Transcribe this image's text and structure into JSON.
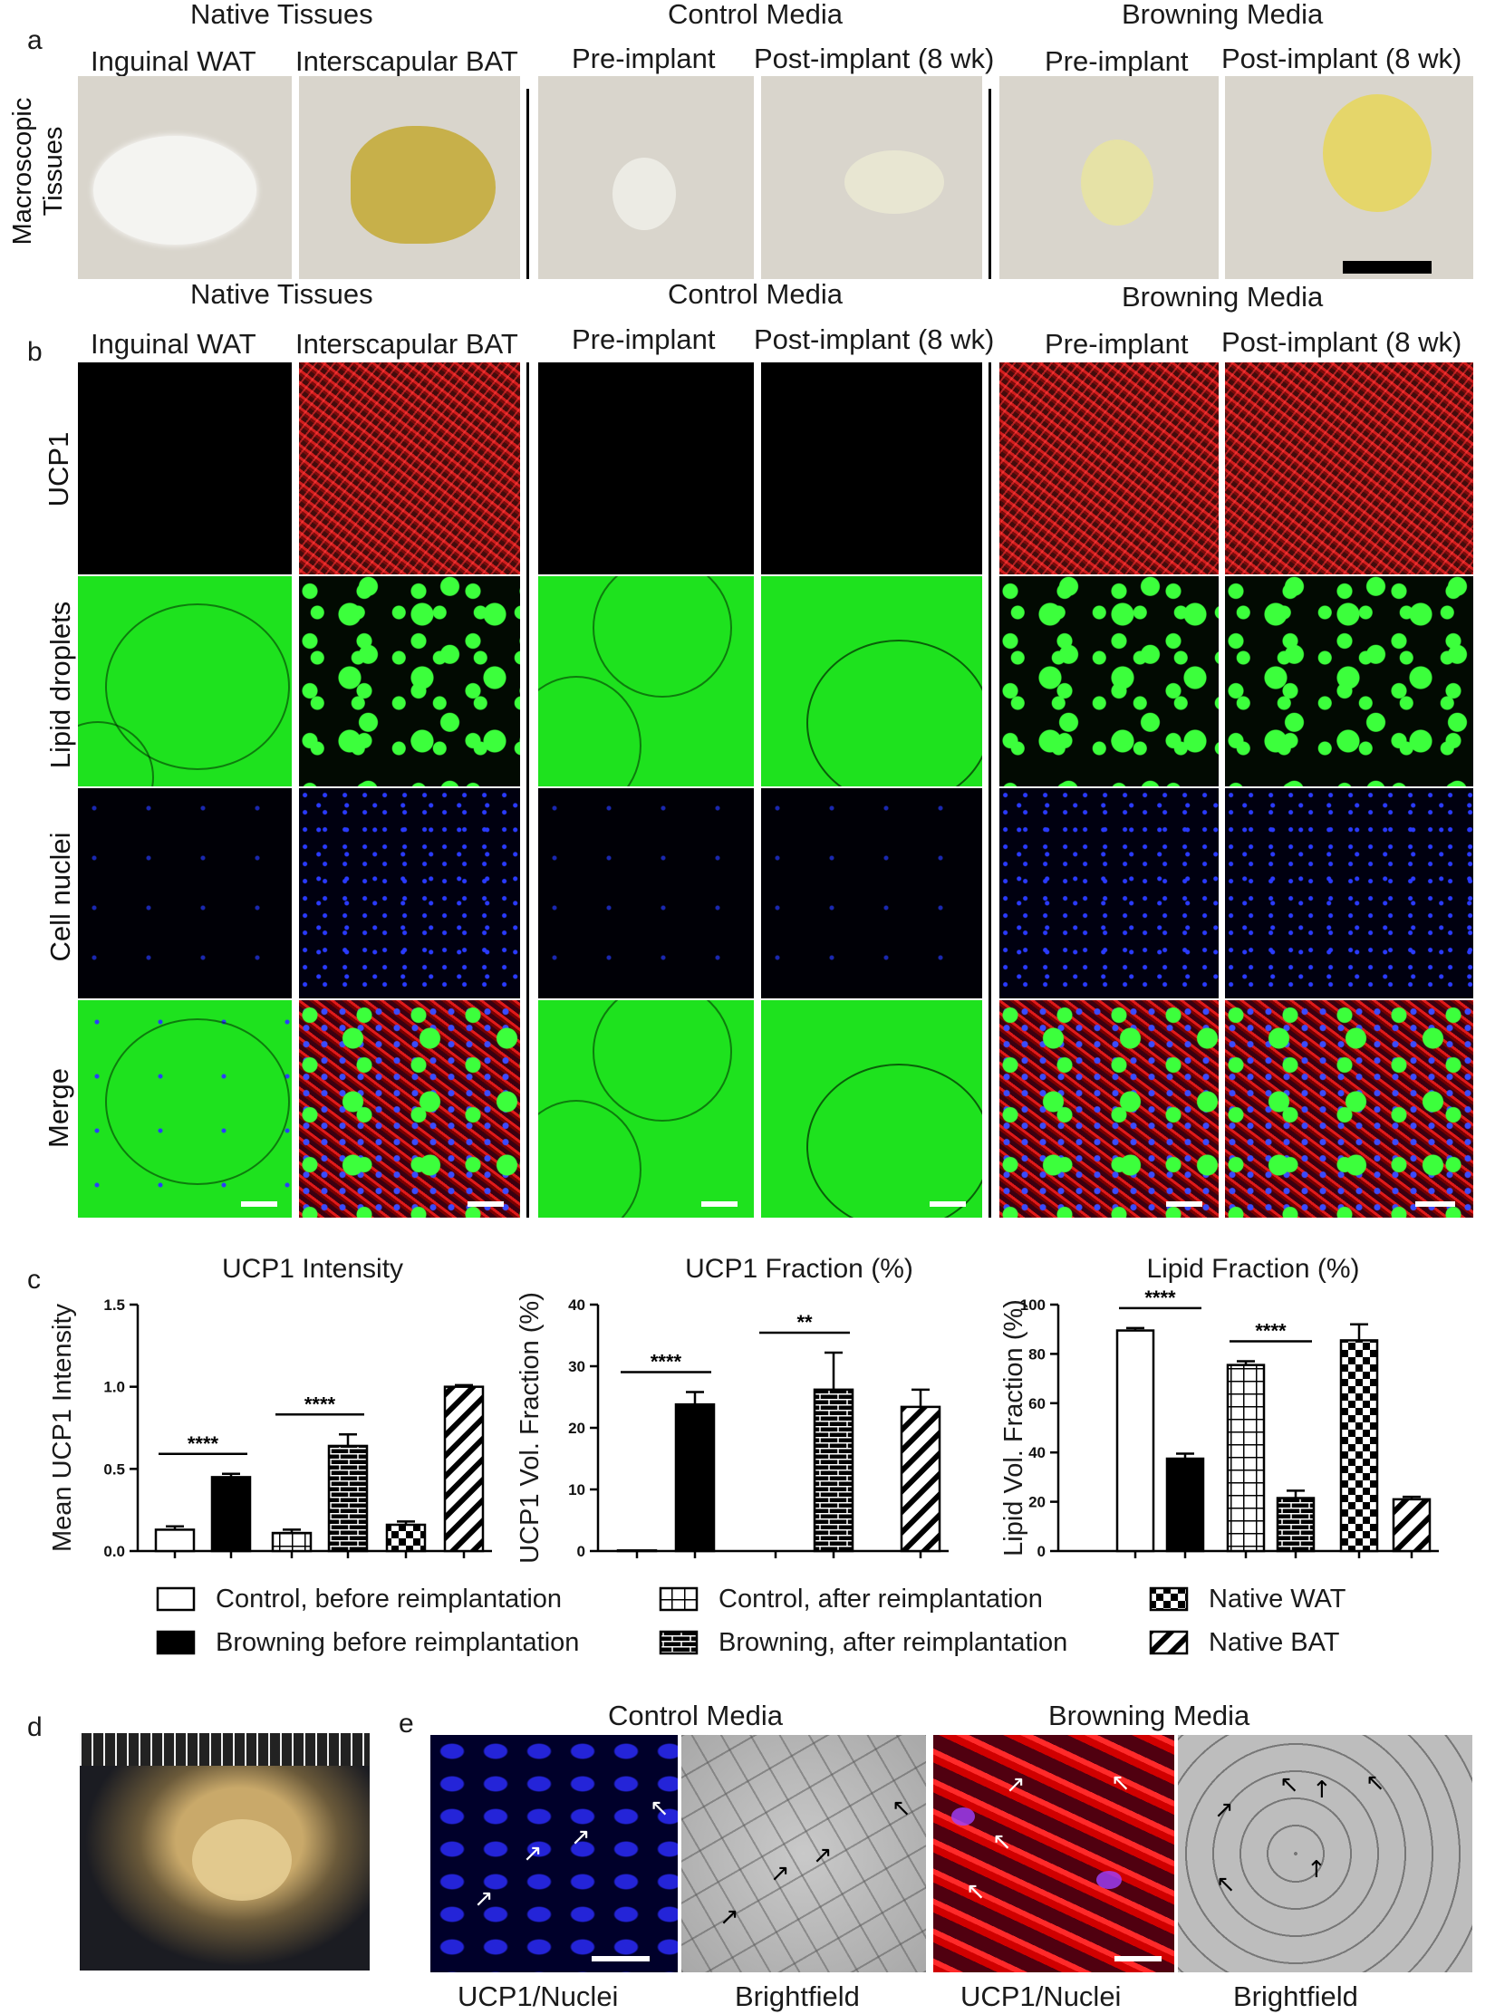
{
  "panel_a": {
    "letter": "a",
    "row_label": "Macroscopic Tissues",
    "groups": [
      "Native Tissues",
      "Control Media",
      "Browning Media"
    ],
    "columns": [
      "Inguinal WAT",
      "Interscapular BAT",
      "Pre-implant",
      "Post-implant (8 wk)",
      "Pre-implant",
      "Post-implant (8 wk)"
    ]
  },
  "panel_b": {
    "letter": "b",
    "groups": [
      "Native Tissues",
      "Control Media",
      "Browning Media"
    ],
    "columns": [
      "Inguinal WAT",
      "Interscapular BAT",
      "Pre-implant",
      "Post-implant (8 wk)",
      "Pre-implant",
      "Post-implant (8 wk)"
    ],
    "rows": [
      "UCP1",
      "Lipid droplets",
      "Cell nuclei",
      "Merge"
    ]
  },
  "panel_c": {
    "letter": "c",
    "legend": [
      {
        "label": "Control, before reimplantation",
        "pattern": "white"
      },
      {
        "label": "Control, after reimplantation",
        "pattern": "grid"
      },
      {
        "label": "Native WAT",
        "pattern": "checker"
      },
      {
        "label": "Browning before reimplantation",
        "pattern": "black"
      },
      {
        "label": "Browning, after reimplantation",
        "pattern": "brick"
      },
      {
        "label": "Native BAT",
        "pattern": "diagonal"
      }
    ]
  },
  "chart_data": [
    {
      "type": "bar",
      "title": "UCP1 Intensity",
      "ylabel": "Mean UCP1 Intensity",
      "ylim": [
        0,
        1.5
      ],
      "yticks": [
        "0.0",
        "0.5",
        "1.0",
        "1.5"
      ],
      "categories": [
        "Control, before reimplantation",
        "Browning before reimplantation",
        "Control, after reimplantation",
        "Browning, after reimplantation",
        "Native WAT",
        "Native BAT"
      ],
      "values": [
        0.13,
        0.45,
        0.11,
        0.64,
        0.16,
        1.0
      ],
      "errors": [
        0.02,
        0.02,
        0.02,
        0.07,
        0.02,
        0.01
      ],
      "significance": [
        {
          "from": 0,
          "to": 1,
          "label": "****"
        },
        {
          "from": 2,
          "to": 3,
          "label": "****"
        }
      ]
    },
    {
      "type": "bar",
      "title": "UCP1 Fraction (%)",
      "ylabel": "UCP1 Vol. Fraction (%)",
      "ylim": [
        0,
        40
      ],
      "yticks": [
        "0",
        "10",
        "20",
        "30",
        "40"
      ],
      "categories": [
        "Control, before reimplantation",
        "Browning before reimplantation",
        "Control, after reimplantation",
        "Browning, after reimplantation",
        "Native BAT"
      ],
      "values": [
        0.1,
        23.8,
        0.0,
        26.2,
        23.4
      ],
      "errors": [
        0.0,
        2.0,
        0.0,
        6.0,
        2.8
      ],
      "significance": [
        {
          "from": 0,
          "to": 1,
          "label": "****"
        },
        {
          "from": 2,
          "to": 3,
          "label": "**"
        }
      ]
    },
    {
      "type": "bar",
      "title": "Lipid Fraction (%)",
      "ylabel": "Lipid Vol. Fraction (%)",
      "ylim": [
        0,
        100
      ],
      "yticks": [
        "0",
        "20",
        "40",
        "60",
        "80",
        "100"
      ],
      "categories": [
        "Control, before reimplantation",
        "Browning before reimplantation",
        "Control, after reimplantation",
        "Browning, after reimplantation",
        "Native WAT",
        "Native BAT"
      ],
      "values": [
        89.5,
        37.5,
        75.5,
        21.5,
        85.5,
        21.0
      ],
      "errors": [
        1.0,
        2.0,
        1.5,
        3.0,
        6.5,
        1.0
      ],
      "significance": [
        {
          "from": 0,
          "to": 1,
          "label": "****"
        },
        {
          "from": 2,
          "to": 3,
          "label": "****"
        }
      ]
    }
  ],
  "panel_d": {
    "letter": "d"
  },
  "panel_e": {
    "letter": "e",
    "groups": [
      "Control Media",
      "Browning Media"
    ],
    "captions": [
      "UCP1/Nuclei",
      "Brightfield",
      "UCP1/Nuclei",
      "Brightfield"
    ]
  }
}
